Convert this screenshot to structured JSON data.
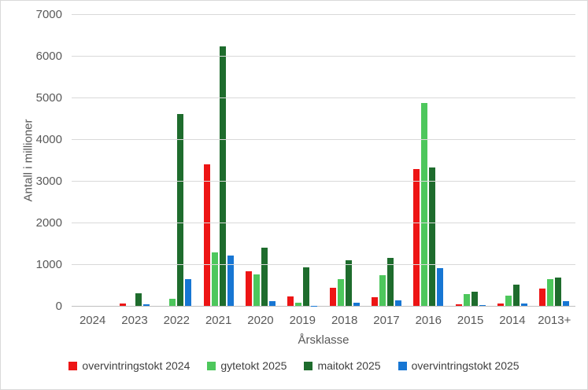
{
  "chart_data": {
    "type": "bar",
    "title": "",
    "xlabel": "Årsklasse",
    "ylabel": "Antall i millioner",
    "ylim": [
      0,
      7000
    ],
    "yticks": [
      0,
      1000,
      2000,
      3000,
      4000,
      5000,
      6000,
      7000
    ],
    "grid": true,
    "legend_position": "bottom",
    "categories": [
      "2024",
      "2023",
      "2022",
      "2021",
      "2020",
      "2019",
      "2018",
      "2017",
      "2016",
      "2015",
      "2014",
      "2013+"
    ],
    "series": [
      {
        "name": "overvintringstokt 2024",
        "color": "#ed1515",
        "values": [
          0,
          60,
          0,
          3390,
          840,
          230,
          440,
          215,
          3290,
          40,
          60,
          425
        ]
      },
      {
        "name": "gytetokt 2025",
        "color": "#4dc75c",
        "values": [
          0,
          0,
          170,
          1280,
          750,
          85,
          640,
          740,
          4860,
          280,
          255,
          650
        ]
      },
      {
        "name": "maitokt 2025",
        "color": "#1e6c2d",
        "values": [
          0,
          300,
          4600,
          6230,
          1400,
          920,
          1100,
          1150,
          3320,
          340,
          515,
          675
        ]
      },
      {
        "name": "overvintringstokt 2025",
        "color": "#1776d3",
        "values": [
          0,
          30,
          640,
          1210,
          120,
          10,
          80,
          130,
          900,
          20,
          50,
          120
        ]
      }
    ]
  }
}
